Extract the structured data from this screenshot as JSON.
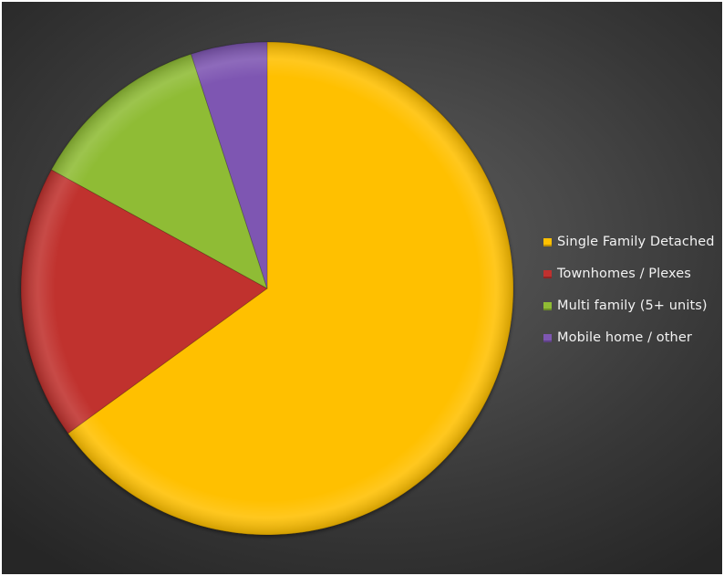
{
  "chart_data": {
    "type": "pie",
    "title": "",
    "start_angle_deg": 0,
    "direction": "clockwise",
    "legend_position": "right",
    "slices": [
      {
        "label": "Single Family Detached",
        "value": 65,
        "color": "#ffc000"
      },
      {
        "label": "Townhomes / Plexes",
        "value": 18,
        "color": "#c0312f"
      },
      {
        "label": "Multi family (5+ units)",
        "value": 12,
        "color": "#8fbc34"
      },
      {
        "label": "Mobile home / other",
        "value": 5,
        "color": "#7e57b2"
      }
    ]
  }
}
